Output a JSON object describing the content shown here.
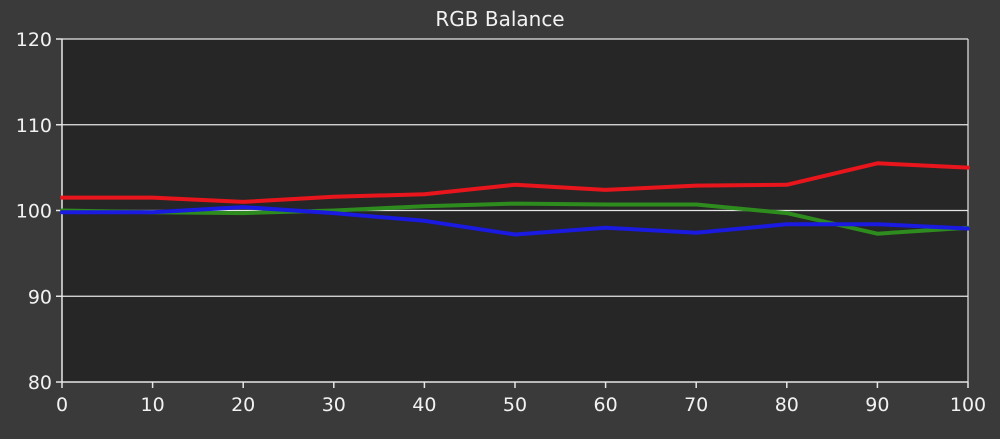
{
  "chart_data": {
    "type": "line",
    "title": "RGB Balance",
    "xlabel": "",
    "ylabel": "",
    "x": [
      0,
      10,
      20,
      30,
      40,
      50,
      60,
      70,
      80,
      90,
      100
    ],
    "xlim": [
      0,
      100
    ],
    "ylim": [
      80,
      120
    ],
    "xticks": [
      0,
      10,
      20,
      30,
      40,
      50,
      60,
      70,
      80,
      90,
      100
    ],
    "yticks": [
      80,
      90,
      100,
      110,
      120
    ],
    "grid": "horizontal",
    "legend": "none",
    "colors": {
      "background": "#3a3a3a",
      "plot_background": "#262626",
      "grid": "#e6e6e6",
      "text": "#f2f2f2"
    },
    "series": [
      {
        "color": "#2e8b1e",
        "values": [
          100.0,
          99.8,
          99.7,
          100.0,
          100.5,
          100.8,
          100.7,
          100.7,
          99.7,
          97.3,
          98.0
        ]
      },
      {
        "color": "#e8161c",
        "values": [
          101.5,
          101.5,
          101.0,
          101.6,
          101.9,
          103.0,
          102.4,
          102.9,
          103.0,
          105.5,
          105.0
        ]
      },
      {
        "color": "#1a1ae0",
        "values": [
          99.8,
          99.8,
          100.4,
          99.7,
          98.8,
          97.2,
          98.0,
          97.4,
          98.4,
          98.4,
          97.9
        ]
      }
    ]
  }
}
